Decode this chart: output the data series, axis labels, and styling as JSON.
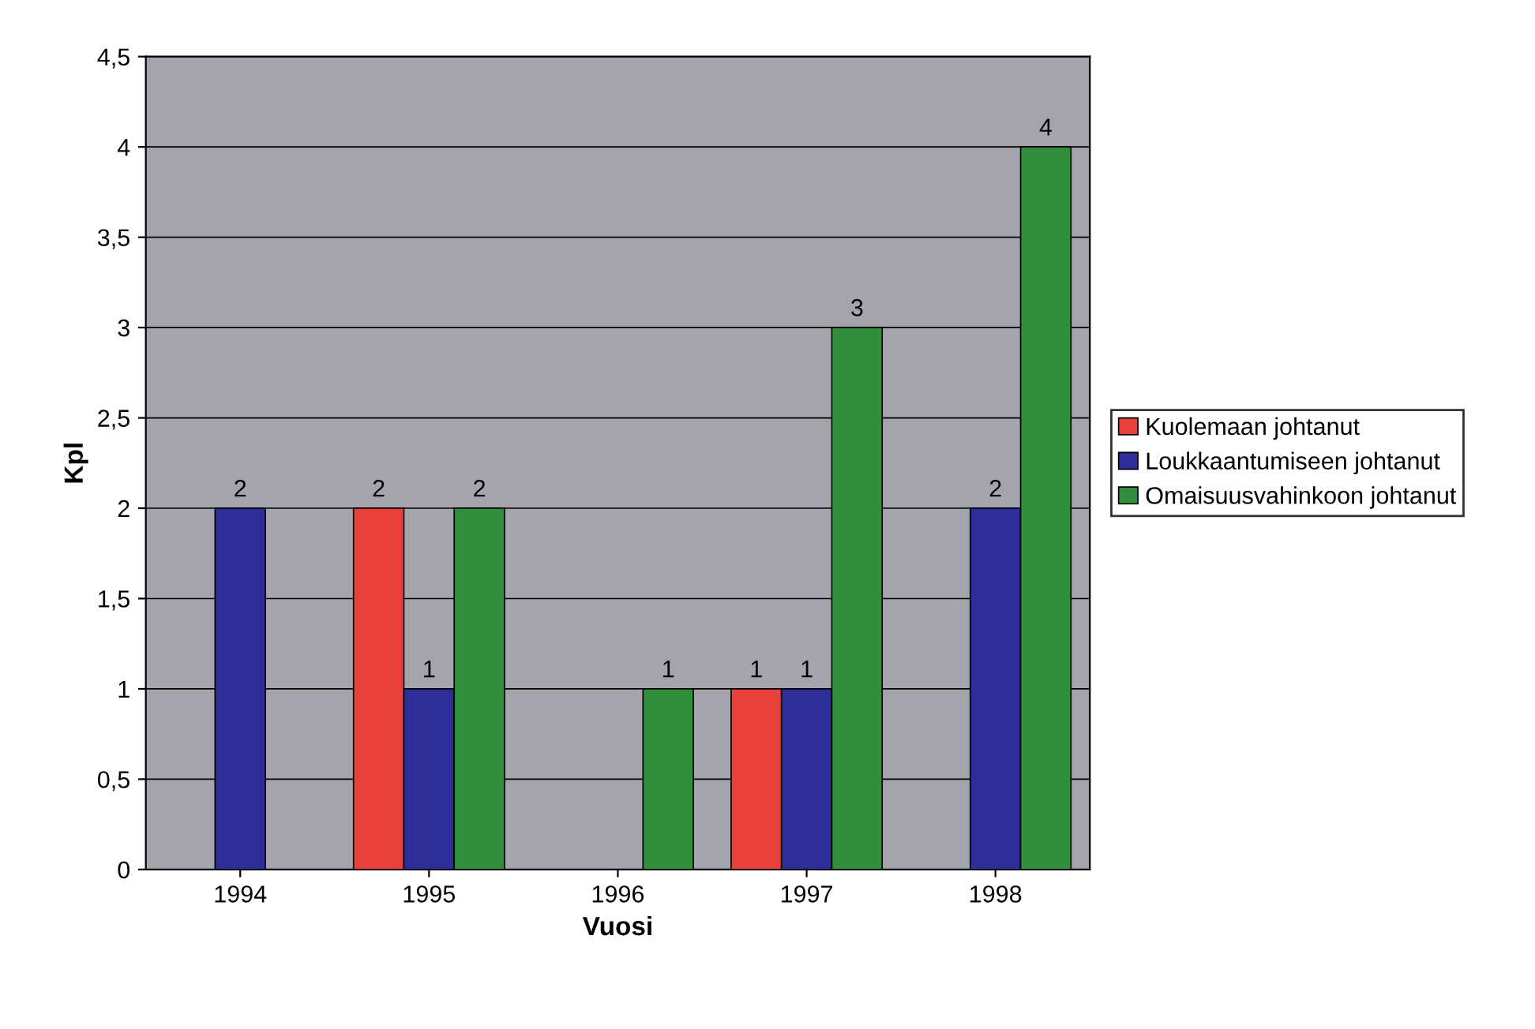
{
  "chart_data": {
    "type": "bar",
    "xlabel": "Vuosi",
    "ylabel": "Kpl",
    "categories": [
      "1994",
      "1995",
      "1996",
      "1997",
      "1998"
    ],
    "series": [
      {
        "name": "Kuolemaan johtanut",
        "color": "#e8403a",
        "values": [
          null,
          2,
          null,
          1,
          null
        ]
      },
      {
        "name": "Loukkaantumiseen johtanut",
        "color": "#2e2e9a",
        "values": [
          2,
          1,
          null,
          1,
          2
        ]
      },
      {
        "name": "Omaisuusvahinkoon johtanut",
        "color": "#2f8f3a",
        "values": [
          null,
          2,
          1,
          3,
          4
        ]
      }
    ],
    "ylim": [
      0,
      4.5
    ],
    "yticks": [
      0,
      {
        "value": 0.5,
        "label": "0,5"
      },
      1,
      {
        "value": 1.5,
        "label": "1,5"
      },
      2,
      {
        "value": 2.5,
        "label": "2,5"
      },
      3,
      {
        "value": 3.5,
        "label": "3,5"
      },
      4,
      {
        "value": 4.5,
        "label": "4,5"
      }
    ],
    "grid": "y",
    "legend": "right",
    "data_labels": true
  }
}
